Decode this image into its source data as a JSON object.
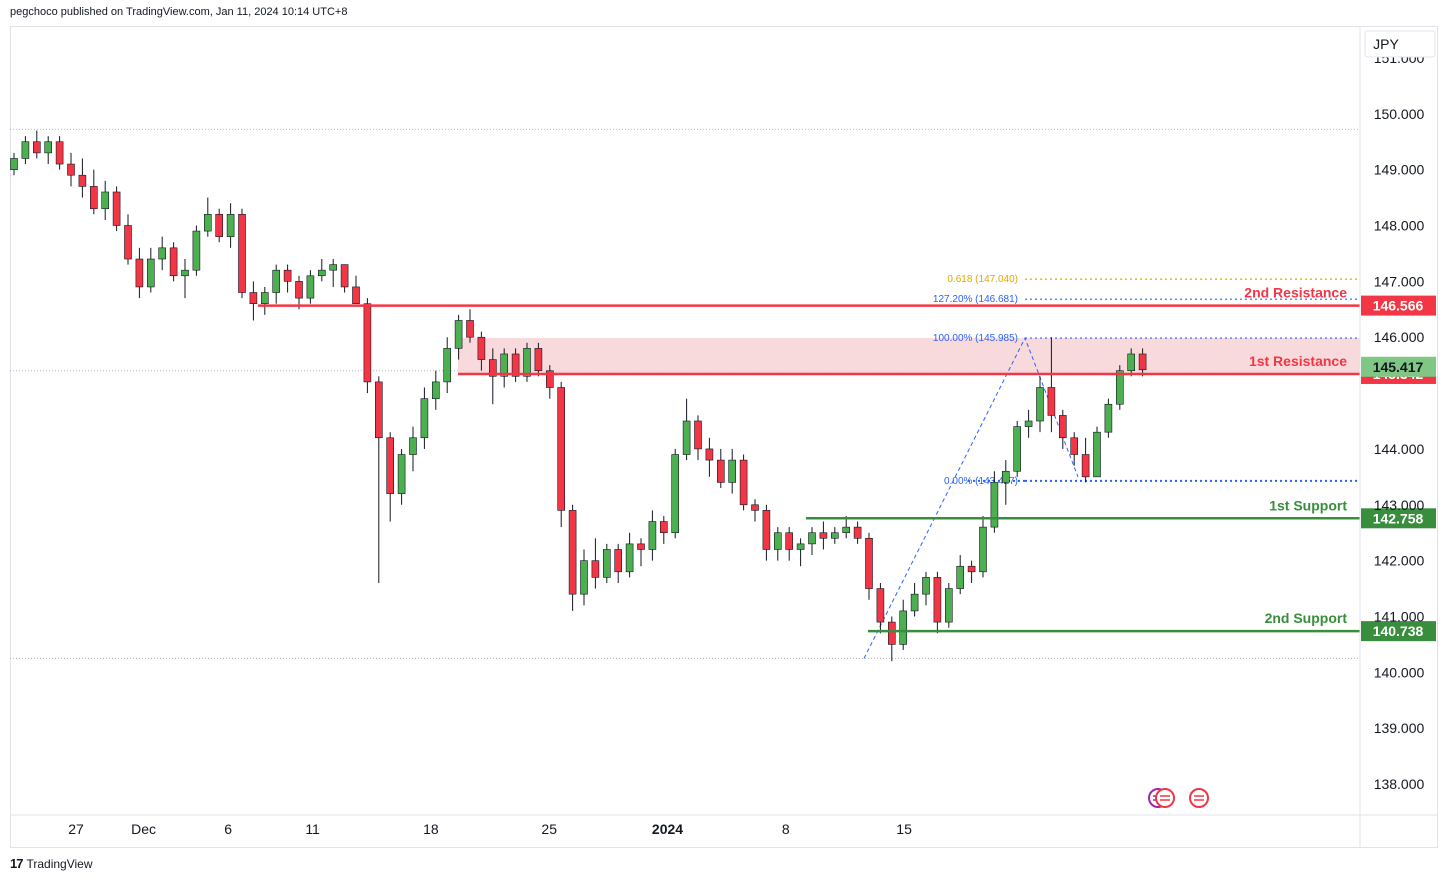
{
  "header": {
    "published_text": "pegchoco published on TradingView.com, Jan 11, 2024 10:14 UTC+8"
  },
  "footer": {
    "brand": "TradingView",
    "logo_glyph": "17"
  },
  "colors": {
    "bull": "#4caf50",
    "bear": "#f23645",
    "resistance": "#f23645",
    "support": "#388e3c",
    "zone": "#f8d3d6",
    "fib_blue": "#2962ff",
    "fib_gold": "#e0a800",
    "last_price": "#81c784"
  },
  "chart_data": {
    "type": "candlestick",
    "symbol_currency": "JPY",
    "title": "",
    "xlabel": "",
    "ylabel": "",
    "ylim": [
      137.5,
      151.5
    ],
    "y_ticks": [
      "151.000",
      "150.000",
      "149.000",
      "148.000",
      "147.000",
      "146.000",
      "144.000",
      "143.000",
      "142.000",
      "141.000",
      "140.000",
      "139.000",
      "138.000"
    ],
    "x_ticks": [
      {
        "label": "27",
        "day": 0
      },
      {
        "label": "Dec",
        "day": 4
      },
      {
        "label": "6",
        "day": 9
      },
      {
        "label": "11",
        "day": 14
      },
      {
        "label": "18",
        "day": 21
      },
      {
        "label": "25",
        "day": 28
      },
      {
        "label": "2024",
        "day": 35,
        "bold": true
      },
      {
        "label": "8",
        "day": 42
      },
      {
        "label": "15",
        "day": 49
      }
    ],
    "grid": false,
    "ohlc_series": [
      [
        149.0,
        149.3,
        148.9,
        149.2
      ],
      [
        149.2,
        149.6,
        149.1,
        149.5
      ],
      [
        149.5,
        149.7,
        149.2,
        149.3
      ],
      [
        149.3,
        149.6,
        149.1,
        149.5
      ],
      [
        149.5,
        149.6,
        149.0,
        149.1
      ],
      [
        149.1,
        149.3,
        148.7,
        148.9
      ],
      [
        148.9,
        149.2,
        148.5,
        148.7
      ],
      [
        148.7,
        149.0,
        148.2,
        148.3
      ],
      [
        148.3,
        148.8,
        148.1,
        148.6
      ],
      [
        148.6,
        148.7,
        147.9,
        148.0
      ],
      [
        148.0,
        148.2,
        147.3,
        147.4
      ],
      [
        147.4,
        147.6,
        146.7,
        146.9
      ],
      [
        146.9,
        147.6,
        146.8,
        147.4
      ],
      [
        147.4,
        147.8,
        147.2,
        147.6
      ],
      [
        147.6,
        147.7,
        147.0,
        147.1
      ],
      [
        147.1,
        147.4,
        146.7,
        147.2
      ],
      [
        147.2,
        148.0,
        147.1,
        147.9
      ],
      [
        147.9,
        148.5,
        147.8,
        148.2
      ],
      [
        148.2,
        148.3,
        147.7,
        147.8
      ],
      [
        147.8,
        148.4,
        147.6,
        148.2
      ],
      [
        148.2,
        148.3,
        146.7,
        146.8
      ],
      [
        146.8,
        147.0,
        146.3,
        146.6
      ],
      [
        146.6,
        146.9,
        146.4,
        146.8
      ],
      [
        146.8,
        147.3,
        146.6,
        147.2
      ],
      [
        147.2,
        147.3,
        146.8,
        147.0
      ],
      [
        147.0,
        147.1,
        146.5,
        146.7
      ],
      [
        146.7,
        147.2,
        146.6,
        147.1
      ],
      [
        147.1,
        147.4,
        147.0,
        147.2
      ],
      [
        147.2,
        147.4,
        146.9,
        147.3
      ],
      [
        147.3,
        147.3,
        146.8,
        146.9
      ],
      [
        146.9,
        147.1,
        146.6,
        146.6
      ],
      [
        146.6,
        146.7,
        145.0,
        145.2
      ],
      [
        145.2,
        145.3,
        141.6,
        144.2
      ],
      [
        144.2,
        144.3,
        142.7,
        143.2
      ],
      [
        143.2,
        144.0,
        143.0,
        143.9
      ],
      [
        143.9,
        144.4,
        143.6,
        144.2
      ],
      [
        144.2,
        145.1,
        144.0,
        144.9
      ],
      [
        144.9,
        145.4,
        144.7,
        145.2
      ],
      [
        145.2,
        146.0,
        145.0,
        145.8
      ],
      [
        145.8,
        146.4,
        145.6,
        146.3
      ],
      [
        146.3,
        146.5,
        145.9,
        146.0
      ],
      [
        146.0,
        146.1,
        145.4,
        145.6
      ],
      [
        145.6,
        145.8,
        144.8,
        145.3
      ],
      [
        145.3,
        145.8,
        145.1,
        145.7
      ],
      [
        145.7,
        145.8,
        145.2,
        145.3
      ],
      [
        145.3,
        145.9,
        145.2,
        145.8
      ],
      [
        145.8,
        145.9,
        145.3,
        145.4
      ],
      [
        145.4,
        145.5,
        144.9,
        145.1
      ],
      [
        145.1,
        145.2,
        142.6,
        142.9
      ],
      [
        142.9,
        143.0,
        141.1,
        141.4
      ],
      [
        141.4,
        142.2,
        141.2,
        142.0
      ],
      [
        142.0,
        142.4,
        141.5,
        141.7
      ],
      [
        141.7,
        142.3,
        141.6,
        142.2
      ],
      [
        142.2,
        142.3,
        141.6,
        141.8
      ],
      [
        141.8,
        142.5,
        141.7,
        142.3
      ],
      [
        142.3,
        142.4,
        141.9,
        142.2
      ],
      [
        142.2,
        142.9,
        142.0,
        142.7
      ],
      [
        142.7,
        142.8,
        142.3,
        142.5
      ],
      [
        142.5,
        144.0,
        142.4,
        143.9
      ],
      [
        143.9,
        144.9,
        143.8,
        144.5
      ],
      [
        144.5,
        144.6,
        143.8,
        144.0
      ],
      [
        144.0,
        144.2,
        143.5,
        143.8
      ],
      [
        143.8,
        144.0,
        143.3,
        143.4
      ],
      [
        143.4,
        144.0,
        143.2,
        143.8
      ],
      [
        143.8,
        143.9,
        142.9,
        143.0
      ],
      [
        143.0,
        143.1,
        142.7,
        142.9
      ],
      [
        142.9,
        143.0,
        142.0,
        142.2
      ],
      [
        142.2,
        142.6,
        142.0,
        142.5
      ],
      [
        142.5,
        142.6,
        142.0,
        142.2
      ],
      [
        142.2,
        142.4,
        141.9,
        142.3
      ],
      [
        142.3,
        142.6,
        142.1,
        142.5
      ],
      [
        142.5,
        142.7,
        142.2,
        142.4
      ],
      [
        142.4,
        142.6,
        142.3,
        142.5
      ],
      [
        142.5,
        142.8,
        142.4,
        142.6
      ],
      [
        142.6,
        142.7,
        142.3,
        142.4
      ],
      [
        142.4,
        142.5,
        141.3,
        141.5
      ],
      [
        141.5,
        141.6,
        140.7,
        140.9
      ],
      [
        140.9,
        141.0,
        140.2,
        140.5
      ],
      [
        140.5,
        141.3,
        140.4,
        141.1
      ],
      [
        141.1,
        141.6,
        141.0,
        141.4
      ],
      [
        141.4,
        141.8,
        141.2,
        141.7
      ],
      [
        141.7,
        141.8,
        140.7,
        140.9
      ],
      [
        140.9,
        141.6,
        140.8,
        141.5
      ],
      [
        141.5,
        142.1,
        141.4,
        141.9
      ],
      [
        141.9,
        142.0,
        141.6,
        141.8
      ],
      [
        141.8,
        142.8,
        141.7,
        142.6
      ],
      [
        142.6,
        143.6,
        142.5,
        143.4
      ],
      [
        143.4,
        143.8,
        143.0,
        143.6
      ],
      [
        143.6,
        144.5,
        143.5,
        144.4
      ],
      [
        144.4,
        144.7,
        144.2,
        144.5
      ],
      [
        144.5,
        145.3,
        144.3,
        145.1
      ],
      [
        145.1,
        146.0,
        144.3,
        144.6
      ],
      [
        144.6,
        144.7,
        144.0,
        144.2
      ],
      [
        144.2,
        144.3,
        143.7,
        143.9
      ],
      [
        143.9,
        144.2,
        143.4,
        143.5
      ],
      [
        143.5,
        144.4,
        143.5,
        144.3
      ],
      [
        144.3,
        144.9,
        144.2,
        144.8
      ],
      [
        144.8,
        145.5,
        144.7,
        145.4
      ],
      [
        145.4,
        145.8,
        145.3,
        145.7
      ],
      [
        145.7,
        145.8,
        145.3,
        145.417
      ]
    ],
    "levels": [
      {
        "label": "2nd Resistance",
        "price": 146.566,
        "tag": "146.566",
        "kind": "resistance"
      },
      {
        "label": "1st Resistance",
        "price": 145.342,
        "tag": "145.342",
        "kind": "resistance"
      },
      {
        "label": "1st Support",
        "price": 142.758,
        "tag": "142.758",
        "kind": "support"
      },
      {
        "label": "2nd Support",
        "price": 140.738,
        "tag": "140.738",
        "kind": "support"
      }
    ],
    "last_price": {
      "price": 145.417,
      "tag": "145.417"
    },
    "resistance_zone": [
      145.342,
      145.985
    ],
    "fib_levels": [
      {
        "text": "0.618 (147.040)",
        "price": 147.04,
        "color": "gold"
      },
      {
        "text": "127.20% (146.681)",
        "price": 146.681,
        "color": "blue"
      },
      {
        "text": "100.00% (145.985)",
        "price": 145.985,
        "color": "blue"
      },
      {
        "text": "0.00% (143.427)",
        "price": 143.427,
        "color": "blue"
      }
    ],
    "reference_lines": [
      149.72,
      140.25,
      145.4
    ]
  }
}
